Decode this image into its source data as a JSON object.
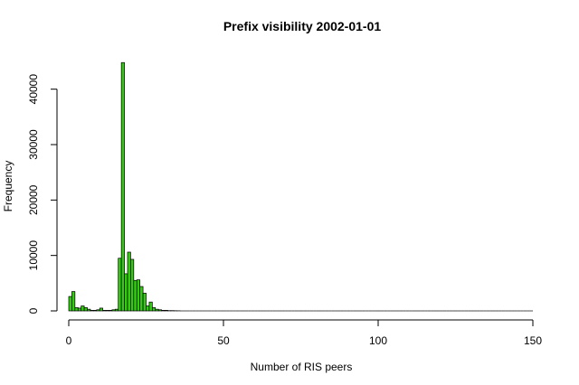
{
  "chart_data": {
    "type": "bar",
    "title": "Prefix visibility 2002-01-01",
    "xlabel": "Number of RIS peers",
    "ylabel": "Frequency",
    "xlim": [
      0,
      150
    ],
    "ylim": [
      0,
      45000
    ],
    "x_ticks": [
      0,
      50,
      100,
      150
    ],
    "y_ticks": [
      0,
      10000,
      20000,
      30000,
      40000
    ],
    "bar_color": "#33cc11",
    "bin_width": 1,
    "x": [
      0,
      1,
      2,
      3,
      4,
      5,
      6,
      7,
      8,
      9,
      10,
      11,
      12,
      13,
      14,
      15,
      16,
      17,
      18,
      19,
      20,
      21,
      22,
      23,
      24,
      25,
      26,
      27,
      28,
      29,
      30,
      31,
      32,
      33,
      34,
      35
    ],
    "values": [
      2600,
      3500,
      600,
      500,
      900,
      600,
      300,
      100,
      100,
      200,
      500,
      100,
      100,
      100,
      200,
      300,
      9500,
      44800,
      6700,
      10600,
      9300,
      5500,
      5600,
      4400,
      3200,
      900,
      1600,
      600,
      300,
      200,
      100,
      100,
      50,
      50,
      30,
      20
    ]
  }
}
